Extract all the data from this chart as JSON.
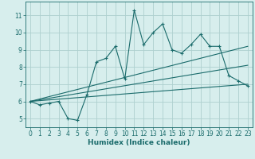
{
  "xlabel": "Humidex (Indice chaleur)",
  "bg_color": "#d7eeed",
  "grid_color": "#aed0cf",
  "line_color": "#1a6b6b",
  "xlim": [
    -0.5,
    23.5
  ],
  "ylim": [
    4.5,
    11.8
  ],
  "xticks": [
    0,
    1,
    2,
    3,
    4,
    5,
    6,
    7,
    8,
    9,
    10,
    11,
    12,
    13,
    14,
    15,
    16,
    17,
    18,
    19,
    20,
    21,
    22,
    23
  ],
  "yticks": [
    5,
    6,
    7,
    8,
    9,
    10,
    11
  ],
  "main_x": [
    0,
    1,
    2,
    3,
    4,
    5,
    6,
    7,
    8,
    9,
    10,
    11,
    12,
    13,
    14,
    15,
    16,
    17,
    18,
    19,
    20,
    21,
    22,
    23
  ],
  "main_y": [
    6.0,
    5.8,
    5.9,
    6.0,
    5.0,
    4.9,
    6.4,
    8.3,
    8.5,
    9.2,
    7.3,
    11.3,
    9.3,
    10.0,
    10.5,
    9.0,
    8.8,
    9.3,
    9.9,
    9.2,
    9.2,
    7.5,
    7.2,
    6.9
  ],
  "trend1_x": [
    0,
    23
  ],
  "trend1_y": [
    6.0,
    7.0
  ],
  "trend2_x": [
    0,
    23
  ],
  "trend2_y": [
    6.0,
    9.2
  ],
  "trend3_x": [
    0,
    23
  ],
  "trend3_y": [
    6.0,
    8.1
  ]
}
